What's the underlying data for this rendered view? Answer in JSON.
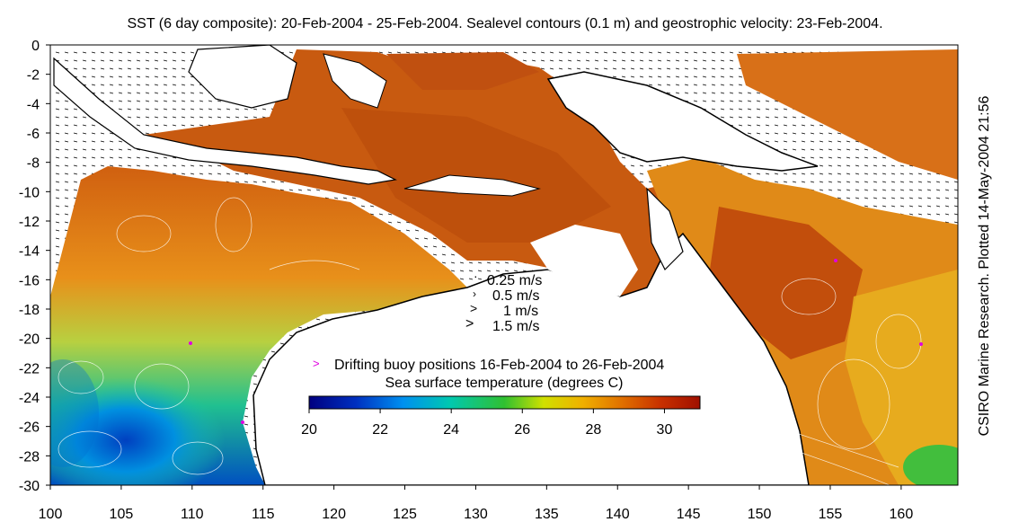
{
  "title": "SST (6 day composite): 20-Feb-2004 - 25-Feb-2004. Sealevel contours (0.1 m) and geostrophic velocity: 23-Feb-2004.",
  "side_label": "CSIRO Marine Research. Plotted 14-May-2004 21:56",
  "map": {
    "x_ticks": [
      "100",
      "105",
      "110",
      "115",
      "120",
      "125",
      "130",
      "135",
      "140",
      "145",
      "150",
      "155",
      "160"
    ],
    "y_ticks": [
      "0",
      "-2",
      "-4",
      "-6",
      "-8",
      "-10",
      "-12",
      "-14",
      "-16",
      "-18",
      "-20",
      "-22",
      "-24",
      "-26",
      "-28",
      "-30"
    ],
    "lon_range": [
      100,
      164
    ],
    "lat_range": [
      -30,
      0
    ]
  },
  "velocity_legend": [
    "0.25 m/s",
    "0.5 m/s",
    "1 m/s",
    "1.5 m/s"
  ],
  "buoy_legend": "Drifting buoy positions 16-Feb-2004 to 26-Feb-2004",
  "colorbar": {
    "label": "Sea surface temperature (degrees C)",
    "ticks": [
      "20",
      "22",
      "24",
      "26",
      "28",
      "30"
    ],
    "range": [
      20,
      31
    ],
    "colors": [
      "#000080",
      "#0030c0",
      "#0090f0",
      "#00c8b0",
      "#30c030",
      "#d0e000",
      "#f0b000",
      "#e07000",
      "#c83000",
      "#a01000"
    ]
  },
  "colors": {
    "land": "#ffffff",
    "coast": "#000000",
    "buoy": "#e000e0"
  }
}
